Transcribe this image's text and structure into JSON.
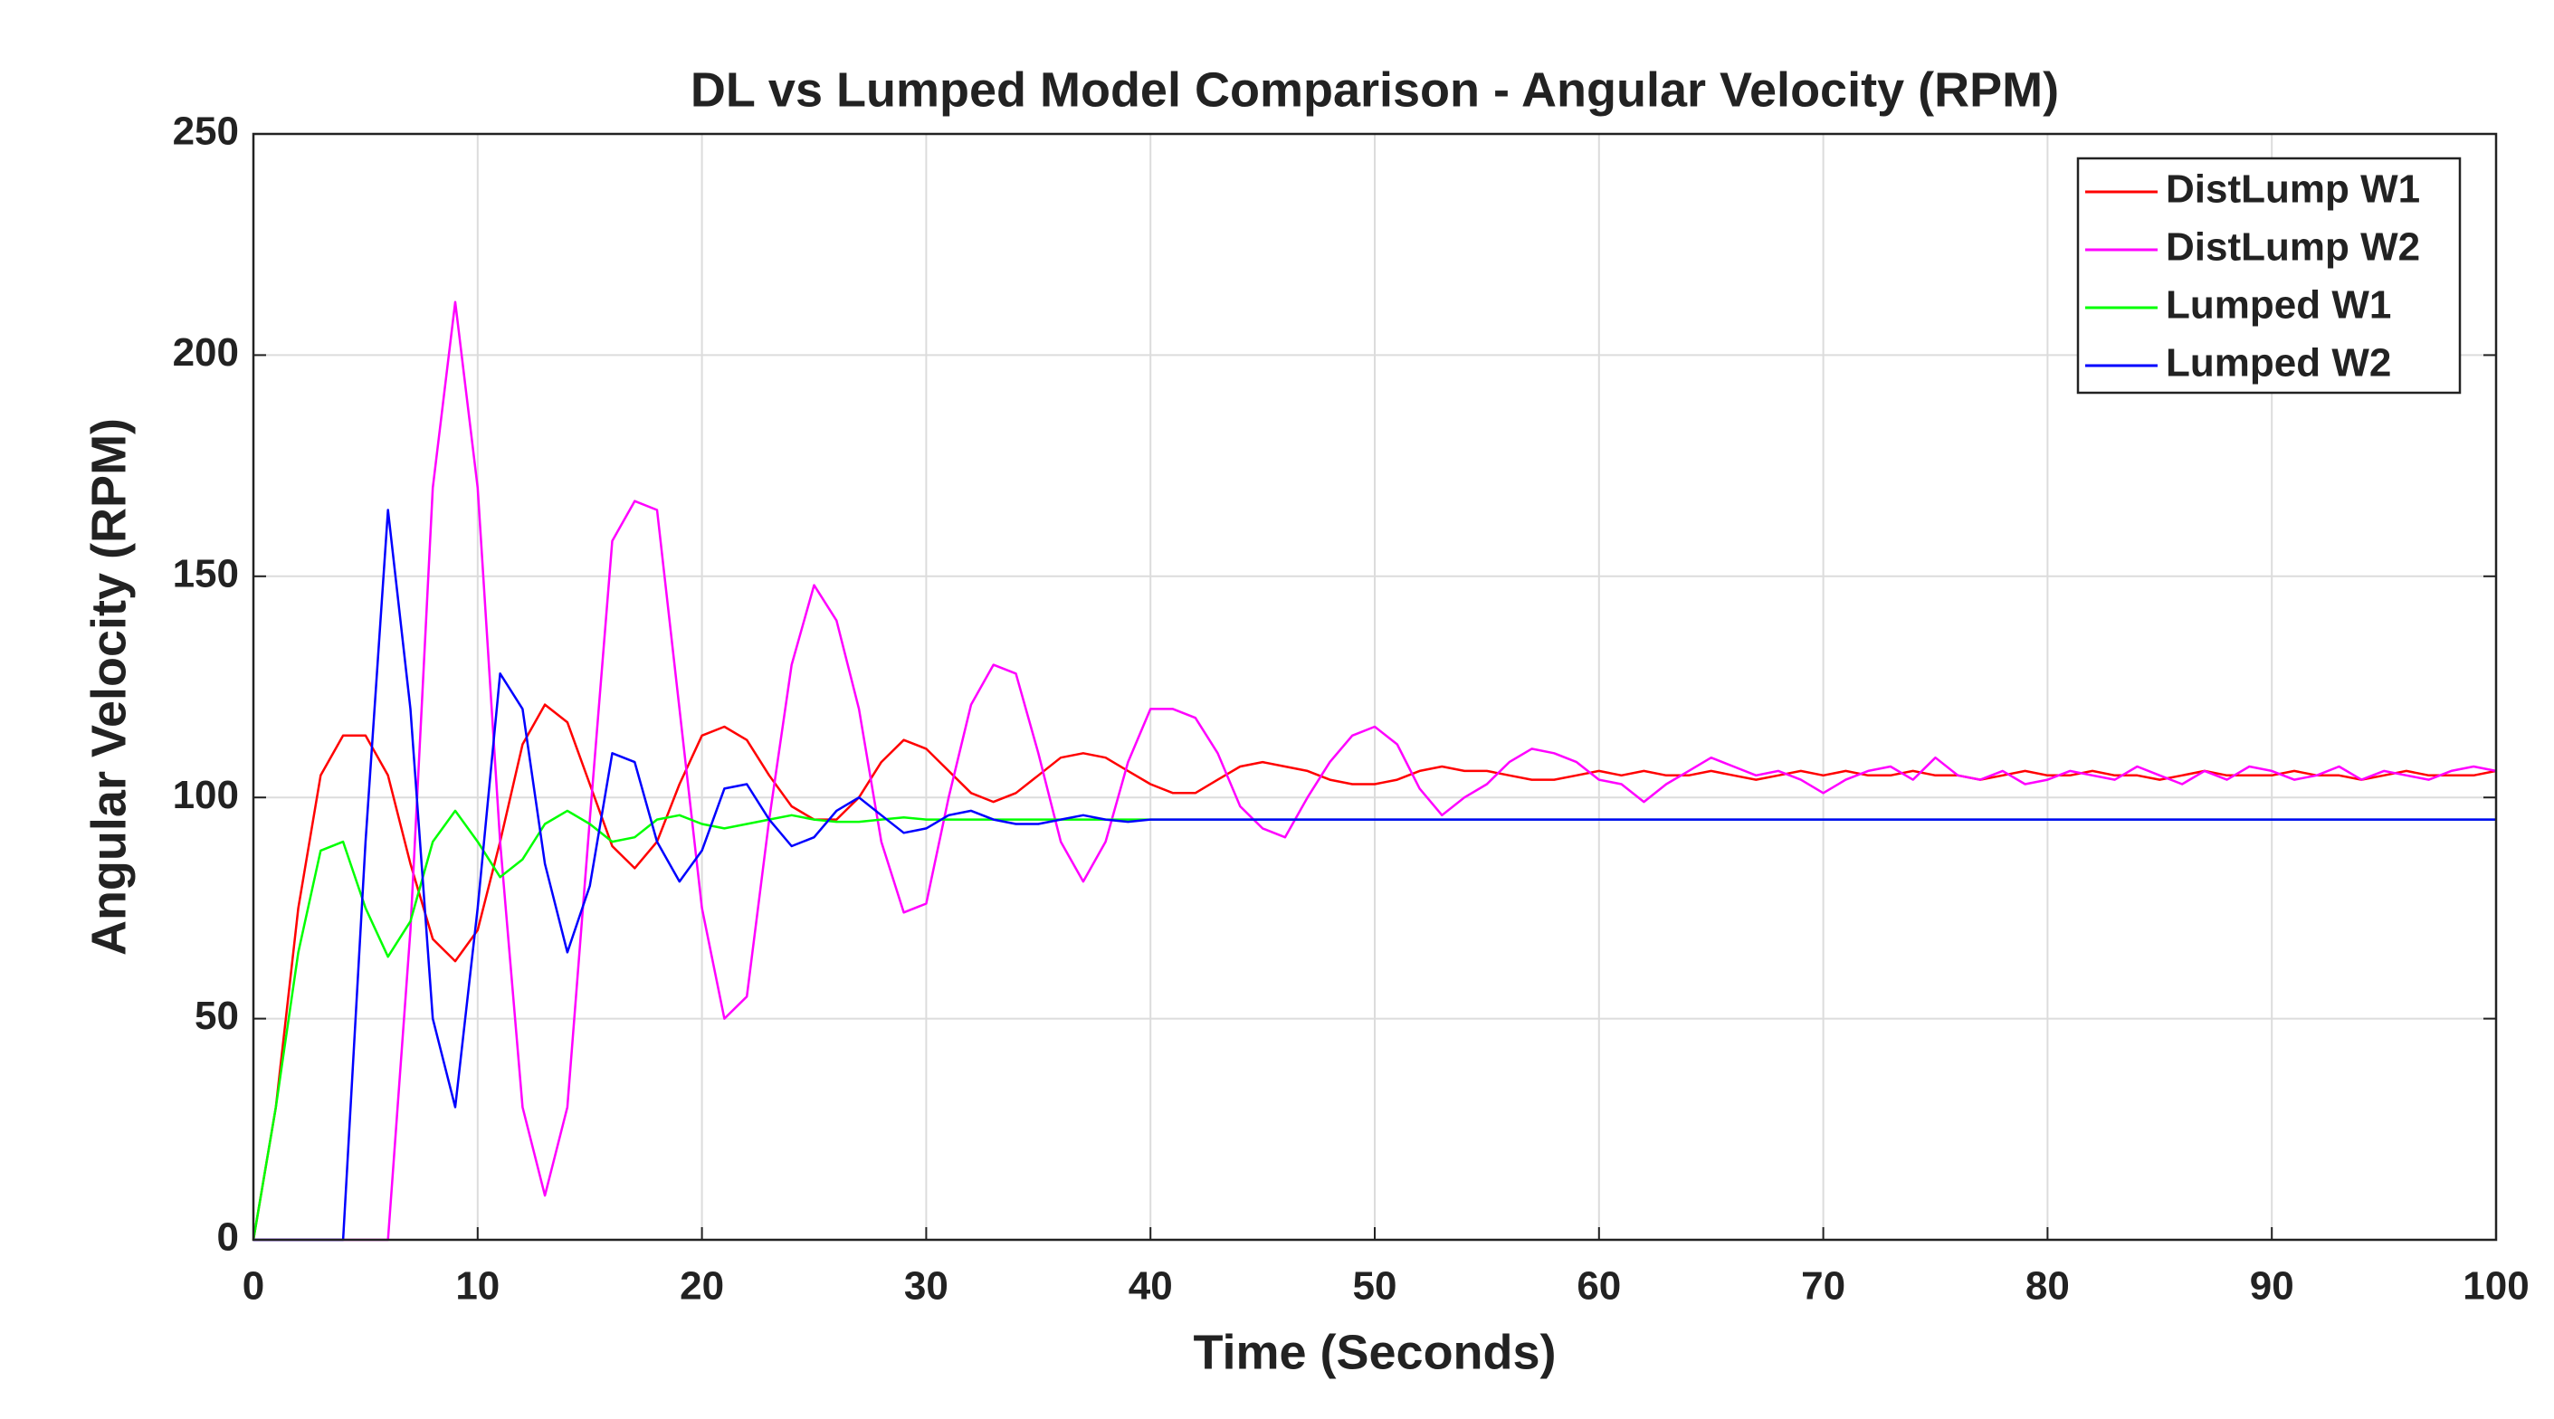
{
  "chart_data": {
    "type": "line",
    "title": "DL vs Lumped Model Comparison - Angular Velocity (RPM)",
    "xlabel": "Time (Seconds)",
    "ylabel": "Angular Velocity (RPM)",
    "x": [
      0,
      1,
      2,
      3,
      4,
      5,
      6,
      7,
      8,
      9,
      10,
      11,
      12,
      13,
      14,
      15,
      16,
      17,
      18,
      19,
      20,
      21,
      22,
      23,
      24,
      25,
      26,
      27,
      28,
      29,
      30,
      31,
      32,
      33,
      34,
      35,
      36,
      37,
      38,
      39,
      40,
      41,
      42,
      43,
      44,
      45,
      46,
      47,
      48,
      49,
      50,
      51,
      52,
      53,
      54,
      55,
      56,
      57,
      58,
      59,
      60,
      61,
      62,
      63,
      64,
      65,
      66,
      67,
      68,
      69,
      70,
      71,
      72,
      73,
      74,
      75,
      76,
      77,
      78,
      79,
      80,
      81,
      82,
      83,
      84,
      85,
      86,
      87,
      88,
      89,
      90,
      91,
      92,
      93,
      94,
      95,
      96,
      97,
      98,
      99,
      100
    ],
    "series": [
      {
        "name": "DistLump W1",
        "color": "#ff0000",
        "values": [
          0,
          30,
          75,
          105,
          114,
          114,
          105,
          85,
          68,
          63,
          70,
          90,
          112,
          121,
          117,
          103,
          89,
          84,
          90,
          103,
          114,
          116,
          113,
          105,
          98,
          95,
          95,
          100,
          108,
          113,
          111,
          106,
          101,
          99,
          101,
          105,
          109,
          110,
          109,
          106,
          103,
          101,
          101,
          104,
          107,
          108,
          107,
          106,
          104,
          103,
          103,
          104,
          106,
          107,
          106,
          106,
          105,
          104,
          104,
          105,
          106,
          105,
          106,
          105,
          105,
          106,
          105,
          104,
          105,
          106,
          105,
          106,
          105,
          105,
          106,
          105,
          105,
          104,
          105,
          106,
          105,
          105,
          106,
          105,
          105,
          104,
          105,
          106,
          105,
          105,
          105,
          106,
          105,
          105,
          104,
          105,
          106,
          105,
          105,
          105,
          106
        ]
      },
      {
        "name": "DistLump W2",
        "color": "#ff00ff",
        "values": [
          0,
          0,
          0,
          0,
          0,
          0,
          0,
          70,
          170,
          212,
          170,
          90,
          30,
          10,
          30,
          95,
          158,
          167,
          165,
          120,
          75,
          50,
          55,
          95,
          130,
          148,
          140,
          120,
          90,
          74,
          76,
          100,
          121,
          130,
          128,
          110,
          90,
          81,
          90,
          108,
          120,
          120,
          118,
          110,
          98,
          93,
          91,
          100,
          108,
          114,
          116,
          112,
          102,
          96,
          100,
          103,
          108,
          111,
          110,
          108,
          104,
          103,
          99,
          103,
          106,
          109,
          107,
          105,
          106,
          104,
          101,
          104,
          106,
          107,
          104,
          109,
          105,
          104,
          106,
          103,
          104,
          106,
          105,
          104,
          107,
          105,
          103,
          106,
          104,
          107,
          106,
          104,
          105,
          107,
          104,
          106,
          105,
          104,
          106,
          107,
          106
        ]
      },
      {
        "name": "Lumped W1",
        "color": "#00ff00",
        "values": [
          0,
          30,
          65,
          88,
          90,
          75,
          64,
          72,
          90,
          97,
          90,
          82,
          86,
          94,
          97,
          94,
          90,
          91,
          95,
          96,
          94,
          93,
          94,
          95,
          96,
          95,
          94.5,
          94.5,
          95,
          95.5,
          95,
          95,
          95,
          95,
          95,
          95,
          95,
          95,
          95,
          95,
          95,
          95,
          95,
          95,
          95,
          95,
          95,
          95,
          95,
          95,
          95,
          95,
          95,
          95,
          95,
          95,
          95,
          95,
          95,
          95,
          95,
          95,
          95,
          95,
          95,
          95,
          95,
          95,
          95,
          95,
          95,
          95,
          95,
          95,
          95,
          95,
          95,
          95,
          95,
          95,
          95,
          95,
          95,
          95,
          95,
          95,
          95,
          95,
          95,
          95,
          95,
          95,
          95,
          95,
          95,
          95,
          95,
          95,
          95,
          95,
          95
        ]
      },
      {
        "name": "Lumped W2",
        "color": "#0000ff",
        "values": [
          0,
          0,
          0,
          0,
          0,
          90,
          165,
          120,
          50,
          30,
          75,
          128,
          120,
          85,
          65,
          80,
          110,
          108,
          90,
          81,
          88,
          102,
          103,
          95,
          89,
          91,
          97,
          100,
          96,
          92,
          93,
          96,
          97,
          95,
          94,
          94,
          95,
          96,
          95,
          94.5,
          95,
          95,
          95,
          95,
          95,
          95,
          95,
          95,
          95,
          95,
          95,
          95,
          95,
          95,
          95,
          95,
          95,
          95,
          95,
          95,
          95,
          95,
          95,
          95,
          95,
          95,
          95,
          95,
          95,
          95,
          95,
          95,
          95,
          95,
          95,
          95,
          95,
          95,
          95,
          95,
          95,
          95,
          95,
          95,
          95,
          95,
          95,
          95,
          95,
          95,
          95,
          95,
          95,
          95,
          95,
          95,
          95,
          95,
          95,
          95,
          95
        ]
      }
    ],
    "xlim": [
      0,
      100
    ],
    "xticks": [
      0,
      10,
      20,
      30,
      40,
      50,
      60,
      70,
      80,
      90,
      100
    ],
    "ylim": [
      0,
      250
    ],
    "yticks": [
      0,
      50,
      100,
      150,
      200,
      250
    ],
    "grid": true,
    "legend": "top-right"
  }
}
